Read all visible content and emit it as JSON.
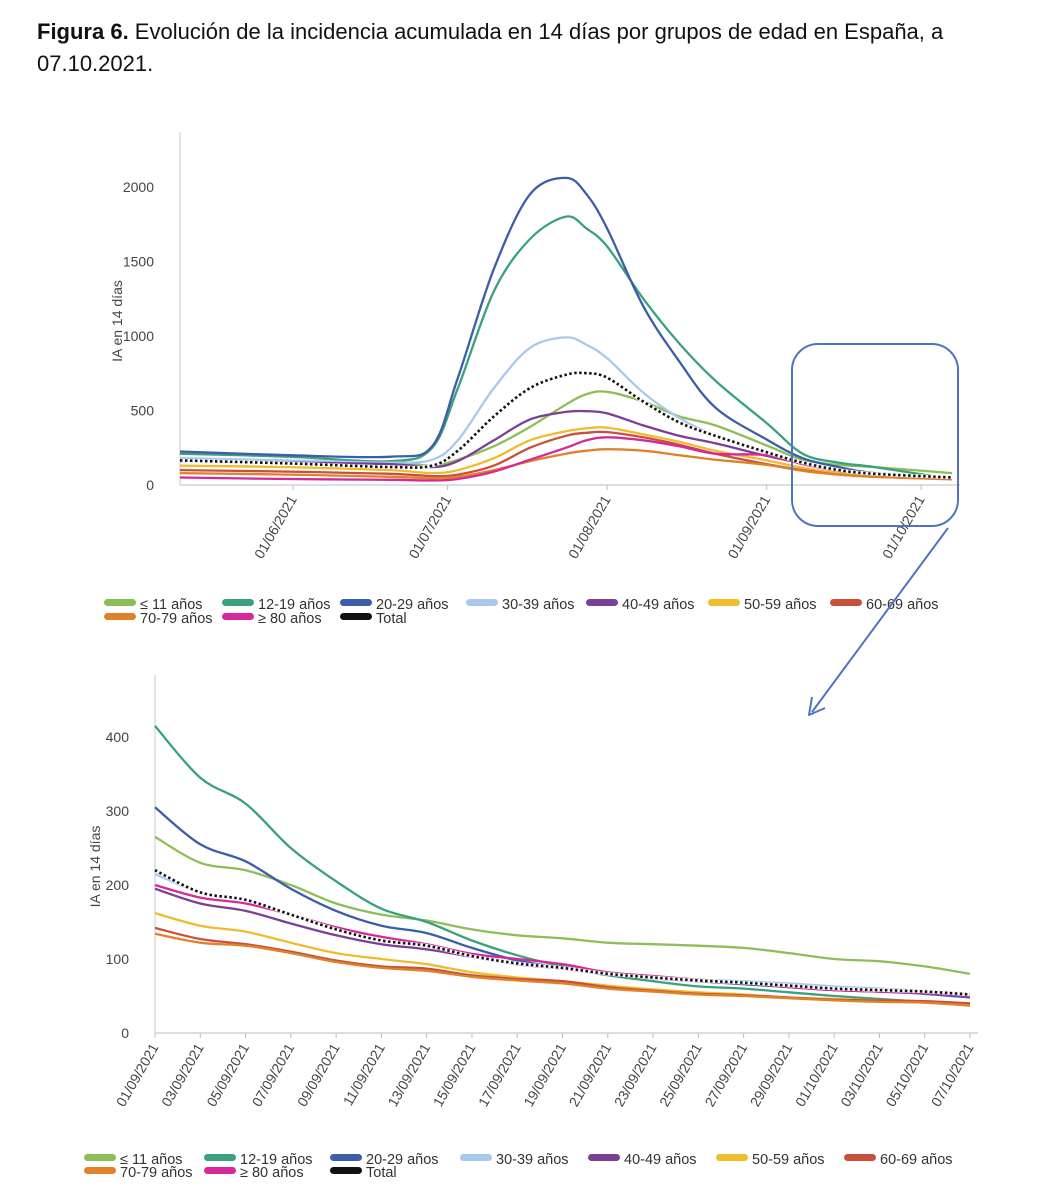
{
  "caption": {
    "label": "Figura 6.",
    "text": " Evolución de la incidencia acumulada en 14 días por grupos de edad en España, a 07.10.2021."
  },
  "chart_data": [
    {
      "type": "line",
      "title": "",
      "xlabel": "",
      "ylabel": "IA en 14 días",
      "x_tick_labels": [
        "01/06/2021",
        "01/07/2021",
        "01/08/2021",
        "01/09/2021",
        "01/10/2021"
      ],
      "y_ticks": [
        0,
        500,
        1000,
        1500,
        2000
      ],
      "ylim": [
        0,
        2200
      ],
      "x_start": "2021-05-10",
      "x_end": "2021-10-07",
      "grid": false,
      "legend_position": "bottom",
      "x": [
        "2021-05-10",
        "2021-05-31",
        "2021-06-20",
        "2021-06-28",
        "2021-07-03",
        "2021-07-10",
        "2021-07-17",
        "2021-07-24",
        "2021-07-28",
        "2021-08-01",
        "2021-08-08",
        "2021-08-15",
        "2021-08-22",
        "2021-09-01",
        "2021-09-08",
        "2021-09-15",
        "2021-09-22",
        "2021-10-07"
      ],
      "series": [
        {
          "name": "≤ 11 años",
          "color": "#8ebe57",
          "dash": false,
          "values": [
            175,
            160,
            150,
            130,
            170,
            260,
            390,
            540,
            610,
            625,
            560,
            460,
            400,
            265,
            170,
            135,
            120,
            80
          ]
        },
        {
          "name": "12-19 años",
          "color": "#3aa17f",
          "dash": false,
          "values": [
            210,
            190,
            160,
            250,
            650,
            1300,
            1650,
            1800,
            1720,
            1600,
            1250,
            950,
            700,
            415,
            210,
            150,
            120,
            40
          ]
        },
        {
          "name": "20-29 años",
          "color": "#3c5ea8",
          "dash": false,
          "values": [
            225,
            200,
            190,
            260,
            720,
            1450,
            1950,
            2060,
            1950,
            1720,
            1200,
            830,
            520,
            305,
            180,
            120,
            80,
            50
          ]
        },
        {
          "name": "30-39 años",
          "color": "#aac8ef",
          "dash": false,
          "values": [
            180,
            165,
            150,
            170,
            300,
            650,
            920,
            990,
            940,
            850,
            620,
            450,
            330,
            215,
            145,
            95,
            75,
            50
          ]
        },
        {
          "name": "40-49 años",
          "color": "#7b3f95",
          "dash": false,
          "values": [
            160,
            150,
            140,
            120,
            160,
            300,
            440,
            490,
            495,
            480,
            400,
            330,
            280,
            195,
            145,
            95,
            75,
            48
          ]
        },
        {
          "name": "50-59 años",
          "color": "#f0bb2e",
          "dash": false,
          "values": [
            130,
            120,
            100,
            80,
            100,
            180,
            300,
            360,
            380,
            385,
            340,
            290,
            230,
            165,
            115,
            80,
            62,
            42
          ]
        },
        {
          "name": "60-69 años",
          "color": "#c9503a",
          "dash": false,
          "values": [
            100,
            90,
            75,
            60,
            70,
            130,
            250,
            330,
            350,
            355,
            320,
            270,
            210,
            140,
            100,
            70,
            55,
            42
          ]
        },
        {
          "name": "70-79 años",
          "color": "#e0822a",
          "dash": false,
          "values": [
            80,
            70,
            55,
            45,
            55,
            100,
            160,
            210,
            230,
            240,
            230,
            200,
            170,
            135,
            95,
            70,
            55,
            38
          ]
        },
        {
          "name": "≥ 80 años",
          "color": "#d6289a",
          "dash": false,
          "values": [
            50,
            40,
            35,
            30,
            40,
            90,
            170,
            250,
            300,
            320,
            300,
            260,
            210,
            200,
            140,
            95,
            75,
            45
          ]
        },
        {
          "name": "Total",
          "color": "#111111",
          "dash": true,
          "values": [
            165,
            145,
            120,
            130,
            230,
            460,
            650,
            740,
            750,
            720,
            560,
            420,
            330,
            220,
            150,
            100,
            75,
            50
          ]
        }
      ]
    },
    {
      "type": "line",
      "title": "",
      "xlabel": "",
      "ylabel": "IA en 14 días",
      "categories": [
        "01/09/2021",
        "03/09/2021",
        "05/09/2021",
        "07/09/2021",
        "09/09/2021",
        "11/09/2021",
        "13/09/2021",
        "15/09/2021",
        "17/09/2021",
        "19/09/2021",
        "21/09/2021",
        "23/09/2021",
        "25/09/2021",
        "27/09/2021",
        "29/09/2021",
        "01/10/2021",
        "03/10/2021",
        "05/10/2021",
        "07/10/2021"
      ],
      "y_ticks": [
        0,
        100,
        200,
        300,
        400
      ],
      "ylim": [
        0,
        450
      ],
      "grid": false,
      "legend_position": "bottom",
      "series": [
        {
          "name": "≤ 11 años",
          "color": "#8ebe57",
          "dash": false,
          "values": [
            265,
            230,
            220,
            200,
            175,
            160,
            152,
            140,
            132,
            128,
            122,
            120,
            118,
            115,
            108,
            100,
            97,
            90,
            80
          ]
        },
        {
          "name": "12-19 años",
          "color": "#3aa17f",
          "dash": false,
          "values": [
            415,
            345,
            310,
            250,
            205,
            168,
            150,
            125,
            105,
            90,
            78,
            70,
            63,
            60,
            55,
            50,
            46,
            42,
            40
          ]
        },
        {
          "name": "20-29 años",
          "color": "#3c5ea8",
          "dash": false,
          "values": [
            305,
            255,
            232,
            195,
            165,
            145,
            135,
            115,
            98,
            88,
            80,
            75,
            70,
            66,
            62,
            58,
            56,
            53,
            48
          ]
        },
        {
          "name": "30-39 años",
          "color": "#aac8ef",
          "dash": false,
          "values": [
            215,
            190,
            180,
            160,
            140,
            125,
            118,
            105,
            95,
            88,
            80,
            76,
            72,
            70,
            67,
            63,
            60,
            57,
            53
          ]
        },
        {
          "name": "40-49 años",
          "color": "#7b3f95",
          "dash": false,
          "values": [
            195,
            175,
            165,
            148,
            132,
            120,
            113,
            103,
            93,
            87,
            79,
            74,
            70,
            67,
            62,
            58,
            56,
            54,
            50
          ]
        },
        {
          "name": "50-59 años",
          "color": "#f0bb2e",
          "dash": false,
          "values": [
            162,
            145,
            137,
            122,
            108,
            100,
            93,
            82,
            75,
            70,
            64,
            59,
            55,
            52,
            48,
            46,
            44,
            42,
            40
          ]
        },
        {
          "name": "60-69 años",
          "color": "#c9503a",
          "dash": false,
          "values": [
            142,
            127,
            120,
            110,
            98,
            90,
            87,
            78,
            73,
            70,
            62,
            57,
            53,
            51,
            48,
            45,
            44,
            43,
            40
          ]
        },
        {
          "name": "70-79 años",
          "color": "#e0822a",
          "dash": false,
          "values": [
            134,
            122,
            118,
            108,
            96,
            88,
            84,
            76,
            71,
            67,
            60,
            56,
            52,
            50,
            47,
            44,
            42,
            41,
            37
          ]
        },
        {
          "name": "≥ 80 años",
          "color": "#d6289a",
          "dash": false,
          "values": [
            200,
            183,
            175,
            160,
            143,
            130,
            120,
            107,
            100,
            93,
            82,
            77,
            72,
            68,
            62,
            58,
            56,
            54,
            50
          ]
        },
        {
          "name": "Total",
          "color": "#111111",
          "dash": true,
          "values": [
            220,
            190,
            180,
            160,
            140,
            125,
            118,
            104,
            94,
            88,
            80,
            75,
            71,
            68,
            64,
            60,
            58,
            56,
            52
          ]
        }
      ]
    }
  ]
}
